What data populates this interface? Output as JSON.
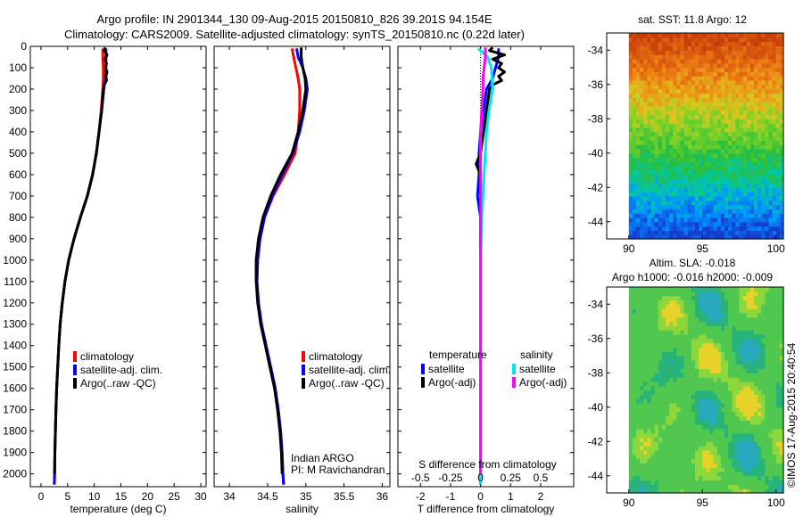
{
  "header": {
    "title_line1": "Argo profile: IN 2901344_130 09-Aug-2015 20150810_826 39.201S 94.154E",
    "title_line2": "Climatology: CARS2009. Satellite-adjusted climatology: synTS_20150810.nc (0.22d later)"
  },
  "side_stamp": "©IMOS 17-Aug-2015 20:40:54",
  "colors": {
    "climatology": "#ff0000",
    "satellite": "#0000ff",
    "argo": "#000000",
    "cyan": "#00e5ee",
    "magenta": "#ff00ff"
  },
  "depth_ticks": [
    0,
    100,
    200,
    300,
    400,
    500,
    600,
    700,
    800,
    900,
    1000,
    1100,
    1200,
    1300,
    1400,
    1500,
    1600,
    1700,
    1800,
    1900,
    2000
  ],
  "chart_data": [
    {
      "type": "line",
      "id": "temperature",
      "xlabel": "temperature (deg C)",
      "ylabel": "",
      "xlim": [
        -2,
        31
      ],
      "ylim": [
        2060,
        0
      ],
      "xticks": [
        0,
        5,
        10,
        15,
        20,
        25,
        30
      ],
      "legend": [
        "climatology",
        "satellite-adj. clim.",
        "Argo(..raw -QC)"
      ],
      "series": [
        {
          "name": "climatology",
          "color": "#ff0000",
          "depth": [
            10,
            50,
            100,
            150,
            200,
            300,
            400,
            500,
            600,
            700,
            800,
            900,
            1000,
            1100,
            1200,
            1300,
            1400,
            1500,
            1600,
            1700,
            1800,
            1900,
            2000,
            2050
          ],
          "values": [
            11.6,
            11.6,
            11.7,
            11.7,
            11.6,
            11.3,
            10.9,
            10.4,
            9.7,
            8.7,
            7.4,
            6.2,
            5.2,
            4.5,
            4.0,
            3.6,
            3.35,
            3.15,
            2.95,
            2.8,
            2.7,
            2.6,
            2.55,
            2.5
          ]
        },
        {
          "name": "satellite-adj. clim.",
          "color": "#0000ff",
          "depth": [
            10,
            50,
            100,
            150,
            200,
            300,
            400,
            500,
            600,
            700,
            800,
            900,
            1000,
            1100,
            1200,
            1300,
            1400,
            1500,
            1600,
            1700,
            1800,
            1900,
            2000,
            2050
          ],
          "values": [
            12.2,
            12.2,
            12.2,
            12.1,
            11.8,
            11.4,
            10.9,
            10.4,
            9.7,
            8.7,
            7.4,
            6.2,
            5.2,
            4.5,
            4.0,
            3.6,
            3.35,
            3.15,
            2.95,
            2.8,
            2.7,
            2.6,
            2.55,
            2.5
          ]
        },
        {
          "name": "Argo(..raw -QC)",
          "color": "#000000",
          "depth": [
            5,
            20,
            40,
            60,
            80,
            100,
            120,
            140,
            160,
            180,
            200,
            300,
            400,
            500,
            600,
            700,
            800,
            900,
            1000,
            1100,
            1200,
            1300,
            1400,
            1500,
            1600,
            1700,
            1800,
            1900,
            2000
          ],
          "values": [
            12.0,
            11.9,
            12.4,
            12.0,
            12.3,
            12.1,
            12.4,
            12.2,
            12.3,
            11.8,
            11.7,
            11.4,
            10.9,
            10.4,
            9.7,
            8.7,
            7.4,
            6.2,
            5.2,
            4.5,
            4.0,
            3.6,
            3.35,
            3.15,
            2.95,
            2.8,
            2.7,
            2.6,
            2.55
          ]
        }
      ]
    },
    {
      "type": "line",
      "id": "salinity",
      "xlabel": "salinity",
      "ylabel": "",
      "xlim": [
        33.8,
        36.1
      ],
      "ylim": [
        2060,
        0
      ],
      "xticks": [
        34,
        34.5,
        35,
        35.5,
        36
      ],
      "xtick_labels": [
        "34",
        "34.5",
        "35",
        "35.5",
        "36"
      ],
      "legend": [
        "climatology",
        "satellite-adj. clim.",
        "Argo(..raw -QC)"
      ],
      "annotation_line1": "Indian ARGO",
      "annotation_line2": "PI: M Ravichandran",
      "series": [
        {
          "name": "climatology",
          "color": "#ff0000",
          "depth": [
            10,
            50,
            100,
            150,
            200,
            300,
            400,
            500,
            600,
            700,
            800,
            900,
            1000,
            1100,
            1200,
            1300,
            1400,
            1500,
            1600,
            1700,
            1800,
            1900,
            2000,
            2050
          ],
          "values": [
            34.82,
            34.84,
            34.87,
            34.9,
            34.92,
            34.92,
            34.9,
            34.86,
            34.72,
            34.57,
            34.46,
            34.4,
            34.37,
            34.36,
            34.38,
            34.42,
            34.48,
            34.54,
            34.6,
            34.64,
            34.67,
            34.69,
            34.7,
            34.71
          ]
        },
        {
          "name": "satellite-adj. clim.",
          "color": "#0000ff",
          "depth": [
            10,
            50,
            100,
            150,
            200,
            300,
            400,
            500,
            600,
            700,
            800,
            900,
            1000,
            1100,
            1200,
            1300,
            1400,
            1500,
            1600,
            1700,
            1800,
            1900,
            2000,
            2050
          ],
          "values": [
            34.88,
            34.9,
            34.96,
            35.0,
            35.02,
            34.98,
            34.92,
            34.83,
            34.69,
            34.56,
            34.46,
            34.4,
            34.37,
            34.36,
            34.38,
            34.42,
            34.48,
            34.54,
            34.6,
            34.64,
            34.67,
            34.69,
            34.7,
            34.71
          ]
        },
        {
          "name": "Argo(..raw -QC)",
          "color": "#000000",
          "depth": [
            5,
            50,
            100,
            150,
            200,
            300,
            400,
            500,
            600,
            700,
            800,
            900,
            1000,
            1100,
            1200,
            1300,
            1400,
            1500,
            1600,
            1700,
            1800,
            1900,
            2000
          ],
          "values": [
            34.94,
            34.94,
            34.96,
            34.99,
            35.0,
            34.96,
            34.9,
            34.82,
            34.67,
            34.54,
            34.44,
            34.38,
            34.35,
            34.35,
            34.37,
            34.41,
            34.47,
            34.53,
            34.59,
            34.63,
            34.66,
            34.68,
            34.69
          ]
        }
      ]
    },
    {
      "type": "line",
      "id": "differences",
      "xlabel": "T difference from climatology",
      "xlabel2": "S difference from climatology",
      "xlim": [
        -2.75,
        3.1
      ],
      "ylim": [
        2060,
        0
      ],
      "xticks": [
        -2,
        -1,
        0,
        1,
        2
      ],
      "x2ticks": [
        -0.5,
        -0.25,
        0,
        0.25,
        0.5
      ],
      "x2tick_labels": [
        "-0.5",
        "-0.25",
        "0",
        "0.25",
        "0.5"
      ],
      "legend_title_left": "temperature",
      "legend_title_right": "salinity",
      "legend_left": [
        "satellite",
        "Argo(-adj)"
      ],
      "legend_right": [
        "satellite",
        "Argo(-adj)"
      ],
      "series": [
        {
          "name": "satellite",
          "group": "temperature",
          "color": "#0000ff",
          "depth": [
            10,
            50,
            100,
            150,
            200,
            300,
            400,
            500,
            600,
            700,
            800,
            900,
            1000,
            1200,
            1400,
            1600,
            1800,
            2000,
            2050
          ],
          "values": [
            0.6,
            0.6,
            0.5,
            0.4,
            0.2,
            0.1,
            0.0,
            -0.05,
            -0.05,
            -0.1,
            0.0,
            0.0,
            0.0,
            0.0,
            0.0,
            0.0,
            0.0,
            0.0,
            0.0
          ]
        },
        {
          "name": "Argo(-adj)",
          "group": "temperature",
          "color": "#000000",
          "depth": [
            5,
            20,
            40,
            60,
            80,
            100,
            120,
            140,
            160,
            180,
            200,
            300,
            400,
            500,
            550,
            600,
            700,
            800,
            900,
            1000,
            1200,
            1400,
            1600,
            1800,
            2000
          ],
          "values": [
            0.4,
            0.3,
            0.8,
            0.4,
            0.7,
            0.6,
            0.8,
            0.6,
            0.7,
            0.4,
            0.3,
            0.2,
            0.1,
            0.0,
            -0.15,
            0.0,
            0.0,
            0.0,
            0.0,
            0.0,
            0.0,
            0.0,
            0.0,
            0.0,
            0.0
          ]
        },
        {
          "name": "satellite",
          "group": "salinity",
          "color": "#00e5ee",
          "depth": [
            10,
            50,
            100,
            200,
            300,
            400,
            500,
            600,
            700,
            800,
            900,
            1000,
            1200,
            1400,
            1600,
            1800,
            2000,
            2050
          ],
          "values": [
            -0.02,
            0.06,
            0.09,
            0.1,
            0.07,
            0.05,
            0.04,
            0.03,
            0.02,
            0.01,
            0.005,
            0.0,
            0.0,
            0.0,
            0.0,
            0.0,
            0.0,
            0.0
          ]
        },
        {
          "name": "Argo(-adj)",
          "group": "salinity",
          "color": "#ff00ff",
          "depth": [
            5,
            50,
            100,
            150,
            200,
            300,
            400,
            500,
            600,
            700,
            800,
            900,
            1000,
            1200,
            1400,
            1600,
            1800,
            2000
          ],
          "values": [
            0.04,
            0.04,
            0.03,
            0.02,
            0.02,
            0.01,
            0.0,
            0.0,
            0.0,
            0.0,
            0.0,
            0.0,
            0.0,
            0.0,
            0.0,
            0.0,
            0.0,
            0.0
          ]
        }
      ]
    },
    {
      "type": "heatmap",
      "id": "sst_map",
      "title": "sat. SST: 11.8 Argo: 12",
      "xlim": [
        88.5,
        100.5
      ],
      "ylim": [
        -45,
        -33
      ],
      "xticks": [
        90,
        95,
        100
      ],
      "yticks": [
        -34,
        -36,
        -38,
        -40,
        -42,
        -44
      ],
      "field": "sea surface temperature"
    },
    {
      "type": "heatmap",
      "id": "sla_map",
      "title": "Altim. SLA: -0.018",
      "subtitle": "Argo h1000: -0.016 h2000: -0.009",
      "xlim": [
        88.5,
        100.5
      ],
      "ylim": [
        -45,
        -33
      ],
      "xticks": [
        90,
        95,
        100
      ],
      "yticks": [
        -34,
        -36,
        -38,
        -40,
        -42,
        -44
      ],
      "field": "sea level anomaly"
    }
  ]
}
